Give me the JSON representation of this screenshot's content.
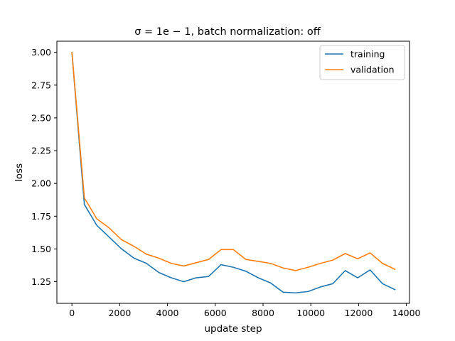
{
  "chart_data": {
    "type": "line",
    "title": "σ = 1e − 1, batch normalization: off",
    "xlabel": "update step",
    "ylabel": "loss",
    "xlim": [
      -630,
      14130
    ],
    "ylim": [
      1.085,
      3.085
    ],
    "xticks": [
      0,
      2000,
      4000,
      6000,
      8000,
      10000,
      12000,
      14000
    ],
    "yticks": [
      1.25,
      1.5,
      1.75,
      2.0,
      2.25,
      2.5,
      2.75,
      3.0
    ],
    "grid": false,
    "legend_position": "top-right",
    "x": [
      0,
      520,
      1040,
      1560,
      2080,
      2600,
      3120,
      3640,
      4160,
      4680,
      5200,
      5720,
      6240,
      6760,
      7280,
      7800,
      8320,
      8840,
      9360,
      9880,
      10400,
      10920,
      11440,
      11960,
      12480,
      13000,
      13520
    ],
    "series": [
      {
        "name": "training",
        "color": "#1f77b4",
        "values": [
          3.0,
          1.84,
          1.68,
          1.59,
          1.5,
          1.43,
          1.39,
          1.32,
          1.28,
          1.25,
          1.28,
          1.29,
          1.38,
          1.36,
          1.33,
          1.28,
          1.24,
          1.17,
          1.165,
          1.175,
          1.21,
          1.235,
          1.335,
          1.28,
          1.34,
          1.235,
          1.19
        ]
      },
      {
        "name": "validation",
        "color": "#ff7f0e",
        "values": [
          3.0,
          1.89,
          1.73,
          1.66,
          1.57,
          1.52,
          1.46,
          1.43,
          1.39,
          1.37,
          1.395,
          1.42,
          1.495,
          1.495,
          1.42,
          1.405,
          1.39,
          1.355,
          1.335,
          1.36,
          1.39,
          1.415,
          1.465,
          1.425,
          1.47,
          1.39,
          1.345
        ]
      }
    ]
  }
}
